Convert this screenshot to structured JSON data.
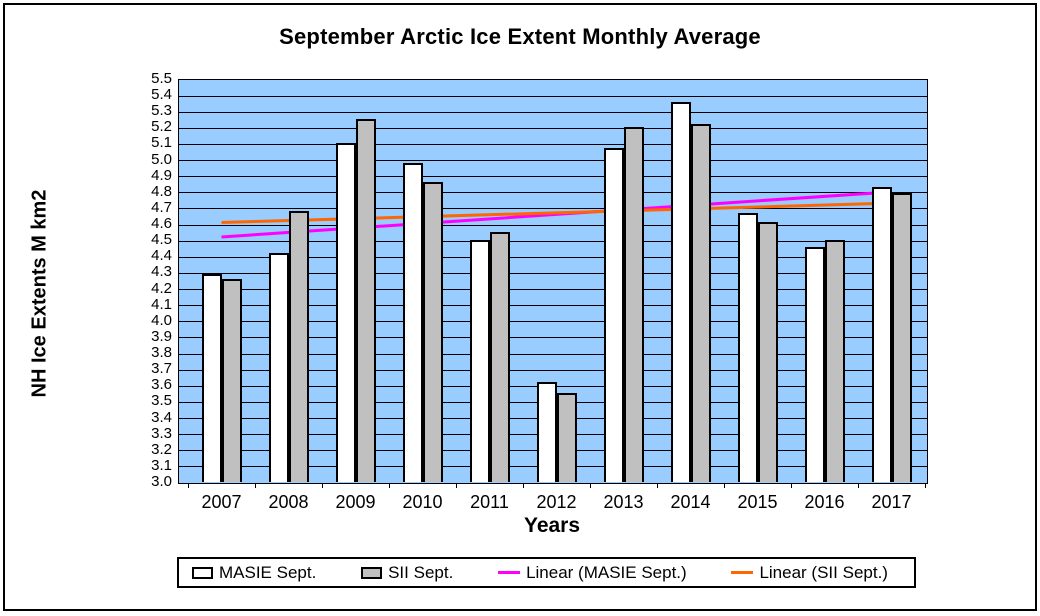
{
  "chart_data": {
    "type": "bar",
    "title": "September Arctic Ice Extent Monthly Average",
    "xlabel": "Years",
    "ylabel": "NH Ice Extents M km2",
    "ylim": [
      3.0,
      5.5
    ],
    "ytick_step": 0.1,
    "grid": "horizontal",
    "plot_bg_color": "#99CCFF",
    "gridline_color": "#000000",
    "legend_position": "bottom",
    "categories": [
      "2007",
      "2008",
      "2009",
      "2010",
      "2011",
      "2012",
      "2013",
      "2014",
      "2015",
      "2016",
      "2017"
    ],
    "series": [
      {
        "name": "MASIE Sept.",
        "color": "#FFFFFF",
        "values": [
          4.29,
          4.42,
          5.1,
          4.98,
          4.5,
          3.62,
          5.07,
          5.36,
          4.67,
          4.46,
          4.83
        ]
      },
      {
        "name": "SII Sept.",
        "color": "#C0C0C0",
        "values": [
          4.26,
          4.68,
          5.25,
          4.86,
          4.55,
          3.55,
          5.2,
          5.22,
          4.61,
          4.5,
          4.79
        ]
      }
    ],
    "trendlines": [
      {
        "name": "Linear (MASIE Sept.)",
        "color": "#FF00FF",
        "start_value": 4.52,
        "end_value": 4.8
      },
      {
        "name": "Linear (SII Sept.)",
        "color": "#FF6600",
        "start_value": 4.61,
        "end_value": 4.73
      }
    ]
  }
}
